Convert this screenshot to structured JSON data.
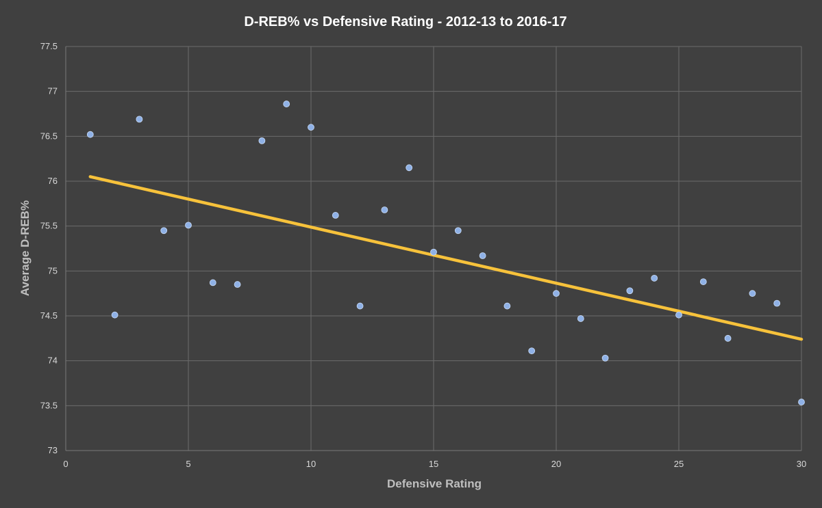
{
  "chart_data": {
    "type": "scatter",
    "title": "D-REB% vs Defensive Rating - 2012-13 to 2016-17",
    "xlabel": "Defensive Rating",
    "ylabel": "Average D-REB%",
    "xlim": [
      0,
      30
    ],
    "ylim": [
      73,
      77.5
    ],
    "x_ticks": [
      0,
      5,
      10,
      15,
      20,
      25,
      30
    ],
    "y_ticks": [
      73,
      73.5,
      74,
      74.5,
      75,
      75.5,
      76,
      76.5,
      77,
      77.5
    ],
    "grid": true,
    "legend": "none",
    "series": [
      {
        "color": "#8fb1e6",
        "points": [
          {
            "x": 1,
            "y": 76.52
          },
          {
            "x": 2,
            "y": 74.51
          },
          {
            "x": 3,
            "y": 76.69
          },
          {
            "x": 4,
            "y": 75.45
          },
          {
            "x": 5,
            "y": 75.51
          },
          {
            "x": 6,
            "y": 74.87
          },
          {
            "x": 7,
            "y": 74.85
          },
          {
            "x": 8,
            "y": 76.45
          },
          {
            "x": 9,
            "y": 76.86
          },
          {
            "x": 10,
            "y": 76.6
          },
          {
            "x": 11,
            "y": 75.62
          },
          {
            "x": 12,
            "y": 74.61
          },
          {
            "x": 13,
            "y": 75.68
          },
          {
            "x": 14,
            "y": 76.15
          },
          {
            "x": 15,
            "y": 75.21
          },
          {
            "x": 16,
            "y": 75.45
          },
          {
            "x": 17,
            "y": 75.17
          },
          {
            "x": 18,
            "y": 74.61
          },
          {
            "x": 19,
            "y": 74.11
          },
          {
            "x": 20,
            "y": 74.75
          },
          {
            "x": 21,
            "y": 74.47
          },
          {
            "x": 22,
            "y": 74.03
          },
          {
            "x": 23,
            "y": 74.78
          },
          {
            "x": 24,
            "y": 74.92
          },
          {
            "x": 25,
            "y": 74.51
          },
          {
            "x": 26,
            "y": 74.88
          },
          {
            "x": 27,
            "y": 74.25
          },
          {
            "x": 28,
            "y": 74.75
          },
          {
            "x": 29,
            "y": 74.64
          },
          {
            "x": 30,
            "y": 73.54
          }
        ]
      }
    ],
    "trendline": {
      "type": "linear",
      "color": "#f7c23b",
      "x": [
        1,
        30
      ],
      "y": [
        76.05,
        74.24
      ]
    }
  }
}
